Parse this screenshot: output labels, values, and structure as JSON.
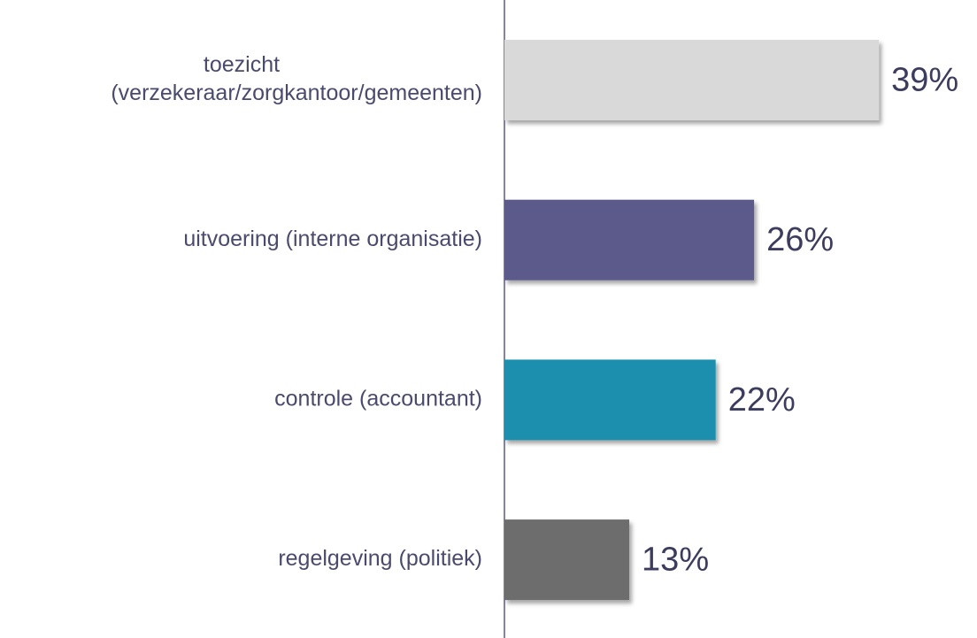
{
  "chart_data": {
    "type": "hbar",
    "categories": [
      [
        "toezicht",
        "(verzekeraar/zorgkantoor/gemeenten)"
      ],
      "uitvoering (interne organisatie)",
      "controle (accountant)",
      "regelgeving (politiek)"
    ],
    "values": [
      39,
      26,
      22,
      13
    ],
    "value_labels": [
      "39%",
      "26%",
      "22%",
      "13%"
    ],
    "colors": [
      "#d9d9d9",
      "#5b5a8a",
      "#1e8fae",
      "#6d6d6d"
    ]
  }
}
